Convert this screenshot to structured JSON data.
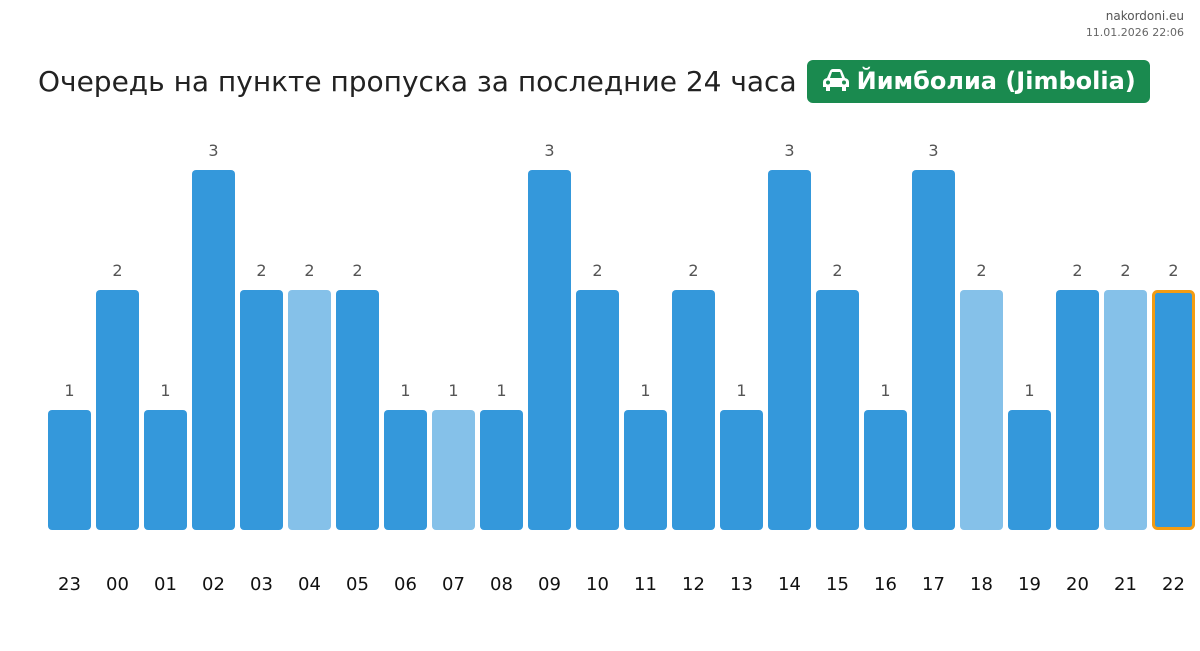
{
  "site": "nakordoni.eu",
  "timestamp": "11.01.2026 22:06",
  "header": {
    "title": "Очередь на пункте пропуска за последние 24 часа",
    "badge_label": "Йимболиа (Jimbolia)",
    "badge_icon": "car-icon",
    "badge_color": "#1a8a4f"
  },
  "chart_data": {
    "type": "bar",
    "categories": [
      "23",
      "00",
      "01",
      "02",
      "03",
      "04",
      "05",
      "06",
      "07",
      "08",
      "09",
      "10",
      "11",
      "12",
      "13",
      "14",
      "15",
      "16",
      "17",
      "18",
      "19",
      "20",
      "21",
      "22"
    ],
    "values": [
      1,
      2,
      1,
      3,
      2,
      2,
      2,
      1,
      1,
      1,
      3,
      2,
      1,
      2,
      1,
      3,
      2,
      1,
      3,
      2,
      1,
      2,
      2,
      2
    ],
    "light": [
      false,
      false,
      false,
      false,
      false,
      true,
      false,
      false,
      true,
      false,
      false,
      false,
      false,
      false,
      false,
      false,
      false,
      false,
      false,
      true,
      false,
      false,
      true,
      false
    ],
    "highlight_index": 23,
    "ylim": [
      0,
      3
    ],
    "colors": {
      "bar": "#3498db",
      "bar_light": "#85c1e9",
      "highlight_border": "#f39c12"
    },
    "grid": false,
    "legend": "none"
  }
}
